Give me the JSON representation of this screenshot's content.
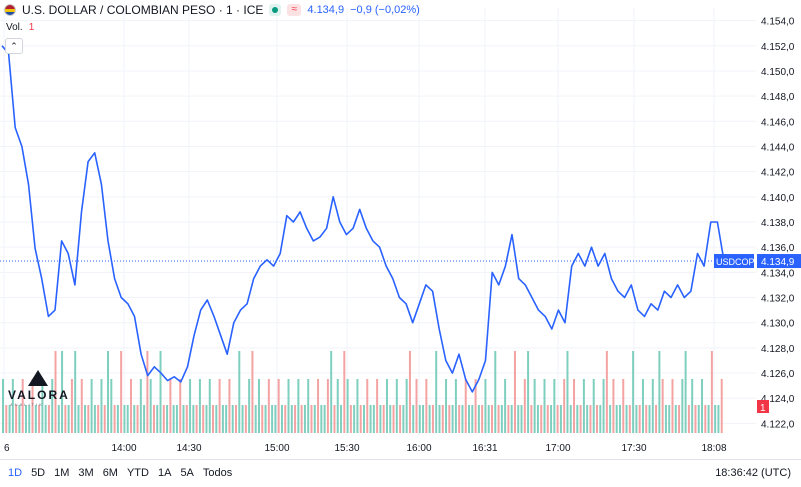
{
  "header": {
    "symbol_title": "U.S. DOLLAR / COLOMBIAN PESO · 1 · ICE",
    "price": "4.134,9",
    "change": "−0,9 (−0,02%)",
    "icons": [
      "flag-icon",
      "market-status-icon",
      "realtime-wave-icon"
    ]
  },
  "volume_label": "Vol.",
  "volume_value": "1",
  "collapse_icon": "chevron-up-icon",
  "chart_data": {
    "type": "line",
    "series": [
      {
        "name": "USDCOP",
        "color": "#2962ff",
        "x_ticks_index": [
          0,
          16,
          32,
          48,
          64,
          80,
          96,
          112,
          128,
          144,
          160
        ],
        "values": [
          4152.0,
          4151.4,
          4145.5,
          4144.0,
          4141.0,
          4135.9,
          4133.5,
          4130.5,
          4131.0,
          4136.5,
          4135.5,
          4133.0,
          4138.8,
          4142.8,
          4143.5,
          4141.0,
          4136.5,
          4133.5,
          4132.0,
          4131.5,
          4130.5,
          4127.5,
          4125.8,
          4126.5,
          4126.0,
          4125.4,
          4125.7,
          4125.3,
          4126.5,
          4129.0,
          4131.0,
          4131.8,
          4130.5,
          4129.0,
          4127.5,
          4130.0,
          4131.0,
          4131.5,
          4133.5,
          4134.5,
          4135.0,
          4134.5,
          4135.5,
          4138.5,
          4138.0,
          4138.8,
          4137.5,
          4136.5,
          4136.8,
          4137.5,
          4140.0,
          4138.0,
          4137.0,
          4137.5,
          4139.0,
          4137.5,
          4136.5,
          4136.0,
          4134.5,
          4133.5,
          4132.0,
          4131.5,
          4130.0,
          4131.5,
          4133.0,
          4132.5,
          4129.5,
          4127.0,
          4126.0,
          4127.5,
          4125.5,
          4124.5,
          4125.5,
          4127.0,
          4134.0,
          4133.0,
          4134.5,
          4137.0,
          4133.5,
          4133.0,
          4132.0,
          4131.0,
          4130.5,
          4129.5,
          4131.0,
          4130.0,
          4134.5,
          4135.5,
          4134.5,
          4136.0,
          4134.5,
          4135.5,
          4133.5,
          4132.5,
          4132.0,
          4133.0,
          4131.0,
          4130.5,
          4131.5,
          4131.0,
          4132.5,
          4132.0,
          4133.0,
          4132.0,
          4132.5,
          4135.5,
          4134.5,
          4138.0,
          4138.0,
          4134.9
        ],
        "last_value_label": "4.134,9",
        "symbol_label": "USDCOP"
      }
    ],
    "volume": {
      "up_color": "#7fcfbf",
      "down_color": "#f4a3a3",
      "base_value": 1,
      "tall_bars_index": [
        8,
        9,
        11,
        16,
        18,
        22,
        24,
        36,
        38,
        50,
        52,
        62,
        66,
        75,
        78,
        80,
        86,
        92,
        96,
        100,
        104,
        108
      ]
    },
    "y_axis": {
      "min": 4121.0,
      "max": 4155.0,
      "ticks": [
        "4.154,0",
        "4.152,0",
        "4.150,0",
        "4.148,0",
        "4.146,0",
        "4.144,0",
        "4.142,0",
        "4.140,0",
        "4.138,0",
        "4.136,0",
        "4.134,0",
        "4.132,0",
        "4.130,0",
        "4.128,0",
        "4.126,0",
        "4.124,0",
        "4.122,0"
      ],
      "tick_values": [
        4154,
        4152,
        4150,
        4148,
        4146,
        4144,
        4142,
        4140,
        4138,
        4136,
        4134,
        4132,
        4130,
        4128,
        4126,
        4124,
        4122
      ],
      "position": "right"
    },
    "x_axis": {
      "ticks": [
        "6",
        "14:00",
        "14:30",
        "15:00",
        "15:30",
        "16:00",
        "16:31",
        "17:00",
        "17:30",
        "18:08"
      ]
    },
    "grid": true,
    "volume_axis_badge": "1"
  },
  "bottom_bar": {
    "ranges": [
      "1D",
      "5D",
      "1M",
      "3M",
      "6M",
      "YTD",
      "1A",
      "5A",
      "Todos"
    ],
    "active": "1D",
    "clock": "18:36:42 (UTC)"
  },
  "logo": {
    "name": "VALORA",
    "sub": "ANALITIK"
  }
}
